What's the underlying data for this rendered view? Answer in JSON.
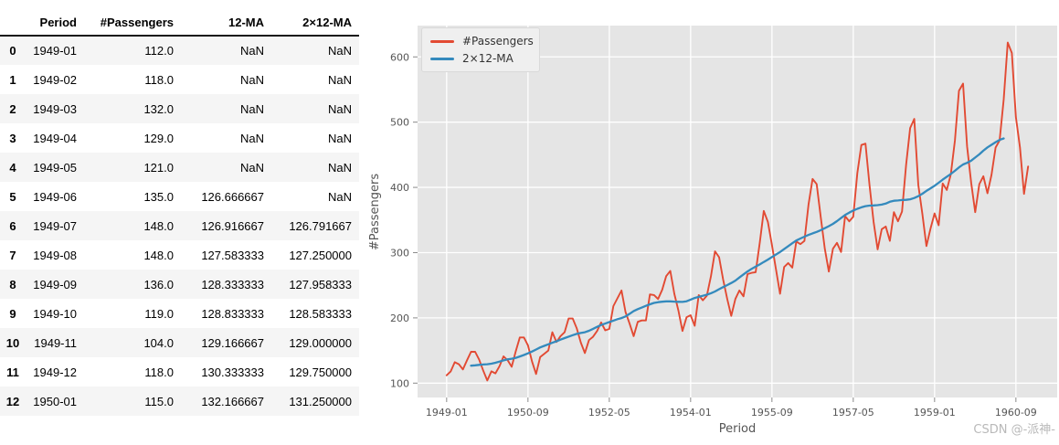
{
  "table": {
    "index_header": "",
    "columns": [
      "Period",
      "#Passengers",
      "12-MA",
      "2×12-MA"
    ],
    "rows": [
      [
        "0",
        "1949-01",
        "112.0",
        "NaN",
        "NaN"
      ],
      [
        "1",
        "1949-02",
        "118.0",
        "NaN",
        "NaN"
      ],
      [
        "2",
        "1949-03",
        "132.0",
        "NaN",
        "NaN"
      ],
      [
        "3",
        "1949-04",
        "129.0",
        "NaN",
        "NaN"
      ],
      [
        "4",
        "1949-05",
        "121.0",
        "NaN",
        "NaN"
      ],
      [
        "5",
        "1949-06",
        "135.0",
        "126.666667",
        "NaN"
      ],
      [
        "6",
        "1949-07",
        "148.0",
        "126.916667",
        "126.791667"
      ],
      [
        "7",
        "1949-08",
        "148.0",
        "127.583333",
        "127.250000"
      ],
      [
        "8",
        "1949-09",
        "136.0",
        "128.333333",
        "127.958333"
      ],
      [
        "9",
        "1949-10",
        "119.0",
        "128.833333",
        "128.583333"
      ],
      [
        "10",
        "1949-11",
        "104.0",
        "129.166667",
        "129.000000"
      ],
      [
        "11",
        "1949-12",
        "118.0",
        "130.333333",
        "129.750000"
      ],
      [
        "12",
        "1950-01",
        "115.0",
        "132.166667",
        "131.250000"
      ]
    ]
  },
  "chart_data": {
    "type": "line",
    "title": "",
    "xlabel": "Period",
    "ylabel": "#Passengers",
    "x_unit": "monthly, starting 1949-01",
    "x_ticks": [
      {
        "m": 0,
        "label": "1949-01"
      },
      {
        "m": 20,
        "label": "1950-09"
      },
      {
        "m": 40,
        "label": "1952-05"
      },
      {
        "m": 60,
        "label": "1954-01"
      },
      {
        "m": 80,
        "label": "1955-09"
      },
      {
        "m": 100,
        "label": "1957-05"
      },
      {
        "m": 120,
        "label": "1959-01"
      },
      {
        "m": 140,
        "label": "1960-09"
      }
    ],
    "y_ticks": [
      100,
      200,
      300,
      400,
      500,
      600
    ],
    "xlim_months": [
      -7.15,
      150.15
    ],
    "ylim": [
      78,
      648
    ],
    "grid": true,
    "legend_position": "upper-left",
    "series": [
      {
        "name": "#Passengers",
        "color": "#E24A33",
        "start_month": 0,
        "values": [
          112,
          118,
          132,
          129,
          121,
          135,
          148,
          148,
          136,
          119,
          104,
          118,
          115,
          126,
          141,
          135,
          125,
          149,
          170,
          170,
          158,
          133,
          114,
          140,
          145,
          150,
          178,
          163,
          172,
          178,
          199,
          199,
          184,
          162,
          146,
          166,
          171,
          180,
          193,
          181,
          183,
          218,
          230,
          242,
          209,
          191,
          172,
          194,
          196,
          196,
          236,
          235,
          229,
          243,
          264,
          272,
          237,
          211,
          180,
          201,
          204,
          188,
          235,
          227,
          234,
          264,
          302,
          293,
          259,
          229,
          203,
          229,
          242,
          233,
          267,
          269,
          270,
          315,
          364,
          347,
          312,
          274,
          237,
          278,
          284,
          277,
          317,
          313,
          318,
          374,
          413,
          405,
          355,
          306,
          271,
          306,
          315,
          301,
          356,
          348,
          355,
          422,
          465,
          467,
          404,
          347,
          305,
          336,
          340,
          318,
          362,
          348,
          363,
          435,
          491,
          505,
          404,
          359,
          310,
          337,
          360,
          342,
          406,
          396,
          420,
          472,
          548,
          559,
          463,
          407,
          362,
          405,
          417,
          391,
          419,
          461,
          472,
          535,
          622,
          606,
          508,
          461,
          390,
          432
        ]
      },
      {
        "name": "2×12-MA",
        "color": "#348ABD",
        "derived_from": "#Passengers",
        "derivation": "centered 2x12 moving average (mean of two adjacent 12-month means)",
        "start_month": 6,
        "end_month": 137
      }
    ]
  },
  "colors": {
    "plot_bg": "#e5e5e5",
    "grid": "#ffffff",
    "tick_mark": "#8a8a8a",
    "tick_text": "#555555",
    "series_red": "#E24A33",
    "series_blue": "#348ABD",
    "row_stripe": "#f5f5f5",
    "legend_bg": "#efefef"
  },
  "watermark": "CSDN @-派神-"
}
